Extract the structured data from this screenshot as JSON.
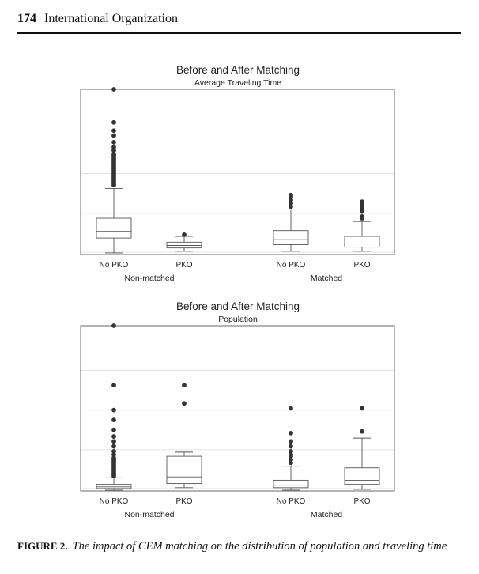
{
  "header": {
    "page_number": "174",
    "journal_title": "International Organization"
  },
  "chart_data": [
    {
      "type": "box",
      "title": "Before and After Matching",
      "subtitle": "Average Traveling Time",
      "ylim": [
        0,
        100
      ],
      "groups": [
        "Non-matched",
        "Matched"
      ],
      "boxes": [
        {
          "label": "No PKO",
          "group": "Non-matched",
          "whisker_low": 1,
          "q1": 10,
          "median": 14,
          "q3": 22,
          "whisker_high": 40,
          "outliers": [
            42,
            43,
            44,
            45,
            46,
            47,
            48,
            49,
            50,
            51,
            52,
            53,
            54,
            55,
            56,
            57,
            58,
            59,
            60,
            61,
            63,
            65,
            68,
            72,
            75,
            80,
            100
          ]
        },
        {
          "label": "PKO",
          "group": "Non-matched",
          "whisker_low": 2,
          "q1": 4,
          "median": 5.5,
          "q3": 7.5,
          "whisker_high": 11,
          "outliers": [
            12
          ]
        },
        {
          "label": "No PKO",
          "group": "Matched",
          "whisker_low": 2,
          "q1": 6,
          "median": 9,
          "q3": 14.5,
          "whisker_high": 27,
          "outliers": [
            29,
            31,
            33,
            35,
            36
          ]
        },
        {
          "label": "PKO",
          "group": "Matched",
          "whisker_low": 2,
          "q1": 4.5,
          "median": 6.5,
          "q3": 11,
          "whisker_high": 20,
          "outliers": [
            22,
            23,
            26,
            28,
            30,
            32
          ]
        }
      ]
    },
    {
      "type": "box",
      "title": "Before and After Matching",
      "subtitle": "Population",
      "ylim": [
        0,
        100
      ],
      "groups": [
        "Non-matched",
        "Matched"
      ],
      "boxes": [
        {
          "label": "No PKO",
          "group": "Non-matched",
          "whisker_low": 0.5,
          "q1": 1.5,
          "median": 2.5,
          "q3": 4,
          "whisker_high": 8,
          "outliers": [
            9,
            10,
            11,
            12,
            13,
            14,
            15,
            16,
            17,
            18,
            19,
            20,
            22,
            24,
            27,
            30,
            33,
            37,
            43,
            49,
            64,
            100
          ]
        },
        {
          "label": "PKO",
          "group": "Non-matched",
          "whisker_low": 2,
          "q1": 4.5,
          "median": 8.5,
          "q3": 21,
          "whisker_high": 23.5,
          "outliers": [
            53,
            64
          ]
        },
        {
          "label": "No PKO",
          "group": "Matched",
          "whisker_low": 0.5,
          "q1": 2,
          "median": 3.5,
          "q3": 6.5,
          "whisker_high": 15,
          "outliers": [
            17,
            19,
            21,
            22,
            24,
            27,
            30,
            35,
            50
          ]
        },
        {
          "label": "PKO",
          "group": "Matched",
          "whisker_low": 1,
          "q1": 4,
          "median": 6.5,
          "q3": 14,
          "whisker_high": 32,
          "outliers": [
            36,
            50
          ]
        }
      ]
    }
  ],
  "caption": {
    "label": "FIGURE 2.",
    "text": "The impact of CEM matching on the distribution of population and traveling time"
  }
}
